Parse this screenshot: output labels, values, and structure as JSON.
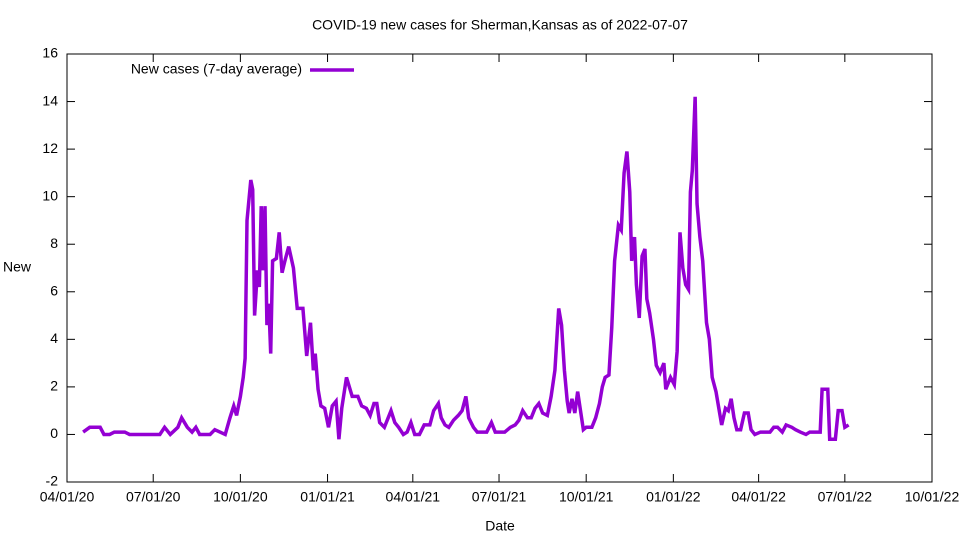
{
  "chart_data": {
    "type": "line",
    "title": "COVID-19 new cases for Sherman,Kansas as of 2022-07-07",
    "x_label": "Date",
    "y_label": "New",
    "legend": "top-left",
    "xlim": [
      "2020-04-01",
      "2022-10-01"
    ],
    "xticks": [
      {
        "value": "2020-04-01",
        "label": "04/01/20"
      },
      {
        "value": "2020-07-01",
        "label": "07/01/20"
      },
      {
        "value": "2020-10-01",
        "label": "10/01/20"
      },
      {
        "value": "2021-01-01",
        "label": "01/01/21"
      },
      {
        "value": "2021-04-01",
        "label": "04/01/21"
      },
      {
        "value": "2021-07-01",
        "label": "07/01/21"
      },
      {
        "value": "2021-10-01",
        "label": "10/01/21"
      },
      {
        "value": "2022-01-01",
        "label": "01/01/22"
      },
      {
        "value": "2022-04-01",
        "label": "04/01/22"
      },
      {
        "value": "2022-07-01",
        "label": "07/01/22"
      },
      {
        "value": "2022-10-01",
        "label": "10/01/22"
      }
    ],
    "ylim": [
      -2,
      16
    ],
    "yticks": [
      -2,
      0,
      2,
      4,
      6,
      8,
      10,
      12,
      14,
      16
    ],
    "x": [
      "2020-04-18",
      "2020-04-25",
      "2020-05-06",
      "2020-05-10",
      "2020-05-16",
      "2020-05-21",
      "2020-06-01",
      "2020-06-06",
      "2020-07-08",
      "2020-07-13",
      "2020-07-19",
      "2020-07-27",
      "2020-07-31",
      "2020-08-06",
      "2020-08-11",
      "2020-08-15",
      "2020-08-19",
      "2020-08-30",
      "2020-09-04",
      "2020-09-15",
      "2020-09-20",
      "2020-09-24",
      "2020-09-27",
      "2020-10-01",
      "2020-10-04",
      "2020-10-06",
      "2020-10-08",
      "2020-10-12",
      "2020-10-14",
      "2020-10-16",
      "2020-10-19",
      "2020-10-21",
      "2020-10-23",
      "2020-10-25",
      "2020-10-27",
      "2020-10-29",
      "2020-10-31",
      "2020-11-02",
      "2020-11-04",
      "2020-11-08",
      "2020-11-11",
      "2020-11-14",
      "2020-11-17",
      "2020-11-21",
      "2020-11-26",
      "2020-11-30",
      "2020-12-06",
      "2020-12-10",
      "2020-12-14",
      "2020-12-17",
      "2020-12-19",
      "2020-12-22",
      "2020-12-25",
      "2020-12-29",
      "2021-01-02",
      "2021-01-06",
      "2021-01-10",
      "2021-01-13",
      "2021-01-16",
      "2021-01-21",
      "2021-01-24",
      "2021-01-27",
      "2021-02-02",
      "2021-02-06",
      "2021-02-11",
      "2021-02-15",
      "2021-02-19",
      "2021-02-22",
      "2021-02-25",
      "2021-03-02",
      "2021-03-06",
      "2021-03-09",
      "2021-03-13",
      "2021-03-17",
      "2021-03-22",
      "2021-03-26",
      "2021-03-30",
      "2021-04-03",
      "2021-04-08",
      "2021-04-13",
      "2021-04-19",
      "2021-04-23",
      "2021-04-28",
      "2021-05-01",
      "2021-05-05",
      "2021-05-09",
      "2021-05-14",
      "2021-05-19",
      "2021-05-23",
      "2021-05-27",
      "2021-05-30",
      "2021-06-04",
      "2021-06-08",
      "2021-06-13",
      "2021-06-18",
      "2021-06-23",
      "2021-06-27",
      "2021-07-07",
      "2021-07-13",
      "2021-07-18",
      "2021-07-22",
      "2021-07-26",
      "2021-07-31",
      "2021-08-04",
      "2021-08-08",
      "2021-08-12",
      "2021-08-16",
      "2021-08-21",
      "2021-08-25",
      "2021-08-29",
      "2021-09-02",
      "2021-09-05",
      "2021-09-08",
      "2021-09-11",
      "2021-09-13",
      "2021-09-16",
      "2021-09-19",
      "2021-09-22",
      "2021-09-25",
      "2021-09-28",
      "2021-10-01",
      "2021-10-07",
      "2021-10-11",
      "2021-10-15",
      "2021-10-18",
      "2021-10-21",
      "2021-10-25",
      "2021-10-28",
      "2021-10-31",
      "2021-11-04",
      "2021-11-07",
      "2021-11-10",
      "2021-11-13",
      "2021-11-16",
      "2021-11-18",
      "2021-11-21",
      "2021-11-23",
      "2021-11-26",
      "2021-11-29",
      "2021-12-02",
      "2021-12-04",
      "2021-12-07",
      "2021-12-11",
      "2021-12-14",
      "2021-12-18",
      "2021-12-22",
      "2021-12-24",
      "2021-12-29",
      "2022-01-02",
      "2022-01-05",
      "2022-01-08",
      "2022-01-11",
      "2022-01-14",
      "2022-01-17",
      "2022-01-19",
      "2022-01-21",
      "2022-01-24",
      "2022-01-26",
      "2022-01-29",
      "2022-02-01",
      "2022-02-05",
      "2022-02-08",
      "2022-02-11",
      "2022-02-15",
      "2022-02-18",
      "2022-02-21",
      "2022-02-25",
      "2022-02-28",
      "2022-03-03",
      "2022-03-06",
      "2022-03-09",
      "2022-03-13",
      "2022-03-17",
      "2022-03-21",
      "2022-03-24",
      "2022-03-28",
      "2022-04-03",
      "2022-04-13",
      "2022-04-17",
      "2022-04-21",
      "2022-04-26",
      "2022-04-30",
      "2022-05-06",
      "2022-05-10",
      "2022-05-15",
      "2022-05-21",
      "2022-05-25",
      "2022-06-05",
      "2022-06-07",
      "2022-06-13",
      "2022-06-15",
      "2022-06-21",
      "2022-06-24",
      "2022-06-28",
      "2022-07-01",
      "2022-07-05"
    ],
    "series": [
      {
        "name": "New cases (7-day average)",
        "color": "#9400d3",
        "values": [
          0.1,
          0.3,
          0.3,
          0.0,
          0.0,
          0.1,
          0.1,
          0.0,
          0.0,
          0.3,
          0.0,
          0.3,
          0.7,
          0.3,
          0.1,
          0.3,
          0.0,
          0.0,
          0.2,
          0.0,
          0.7,
          1.2,
          0.8,
          1.6,
          2.4,
          3.2,
          9.0,
          10.7,
          10.3,
          5.0,
          6.9,
          6.2,
          9.6,
          6.9,
          9.6,
          4.6,
          5.5,
          3.4,
          7.3,
          7.4,
          8.5,
          6.8,
          7.3,
          7.9,
          7.0,
          5.3,
          5.3,
          3.3,
          4.7,
          2.7,
          3.4,
          1.9,
          1.2,
          1.1,
          0.3,
          1.2,
          1.4,
          -0.2,
          1.1,
          2.4,
          2.0,
          1.6,
          1.6,
          1.2,
          1.1,
          0.8,
          1.3,
          1.3,
          0.5,
          0.3,
          0.7,
          1.0,
          0.5,
          0.3,
          0.0,
          0.1,
          0.5,
          0.0,
          0.0,
          0.4,
          0.4,
          1.0,
          1.3,
          0.7,
          0.4,
          0.3,
          0.6,
          0.8,
          1.0,
          1.6,
          0.7,
          0.3,
          0.1,
          0.1,
          0.1,
          0.5,
          0.1,
          0.1,
          0.3,
          0.4,
          0.6,
          1.0,
          0.7,
          0.7,
          1.1,
          1.3,
          0.9,
          0.8,
          1.6,
          2.7,
          5.3,
          4.6,
          2.7,
          1.4,
          0.9,
          1.5,
          0.9,
          1.8,
          1.0,
          0.2,
          0.3,
          0.3,
          0.7,
          1.3,
          2.0,
          2.4,
          2.5,
          4.5,
          7.3,
          8.8,
          8.6,
          11.0,
          11.9,
          10.2,
          7.3,
          8.3,
          6.3,
          4.9,
          7.5,
          7.8,
          5.7,
          5.1,
          4.0,
          2.9,
          2.6,
          3.0,
          1.9,
          2.4,
          2.1,
          3.5,
          8.5,
          7.0,
          6.3,
          6.1,
          10.2,
          11.1,
          14.2,
          9.7,
          8.3,
          7.3,
          4.7,
          4.0,
          2.4,
          1.8,
          1.1,
          0.4,
          1.1,
          1.0,
          1.5,
          0.7,
          0.2,
          0.2,
          0.9,
          0.9,
          0.2,
          0.0,
          0.1,
          0.1,
          0.3,
          0.3,
          0.1,
          0.4,
          0.3,
          0.2,
          0.1,
          0.0,
          0.1,
          0.1,
          1.9,
          1.9,
          -0.2,
          -0.2,
          1.0,
          1.0,
          0.3,
          0.4
        ]
      }
    ]
  }
}
